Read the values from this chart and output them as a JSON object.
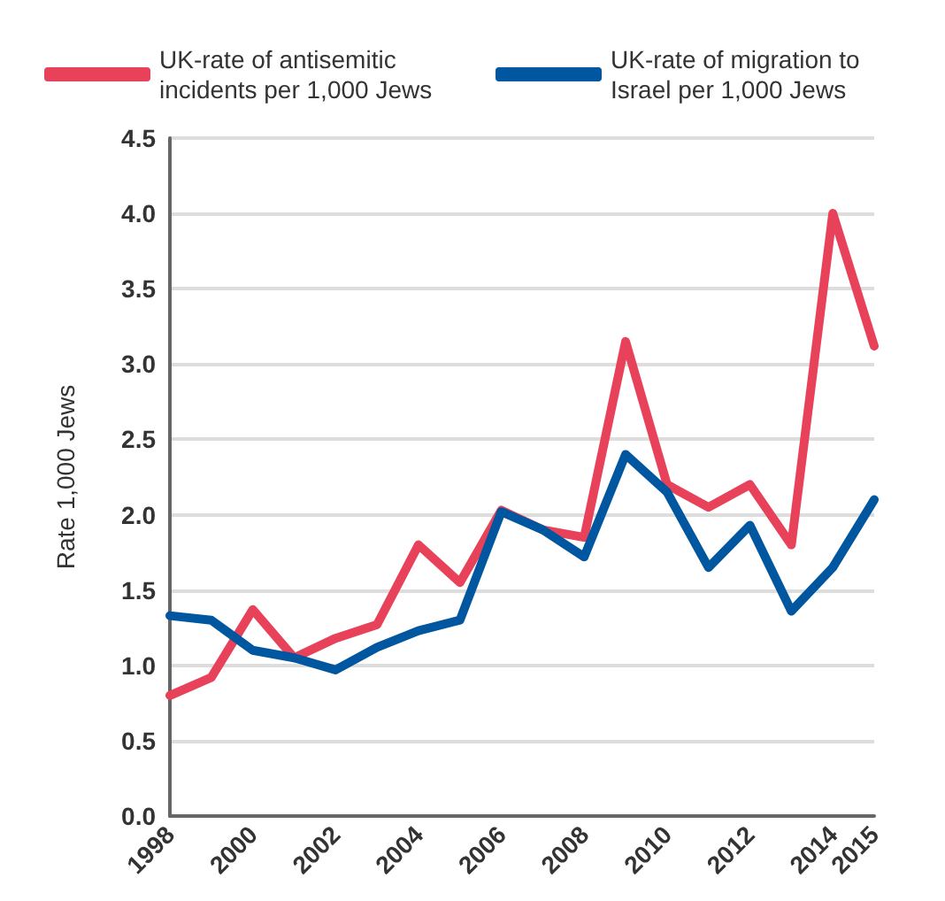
{
  "chart_data": {
    "type": "line",
    "ylabel": "Rate 1,000 Jews",
    "categories": [
      "1998",
      null,
      "2000",
      null,
      "2002",
      null,
      "2004",
      null,
      "2006",
      null,
      "2008",
      null,
      "2010",
      null,
      "2012",
      null,
      "2014",
      "2015"
    ],
    "series": [
      {
        "name": "UK-rate of antisemitic incidents per 1,000 Jews",
        "color": "#e8415a",
        "values": [
          0.8,
          0.92,
          1.37,
          1.05,
          1.18,
          1.27,
          1.8,
          1.55,
          2.03,
          1.9,
          1.85,
          3.15,
          2.2,
          2.05,
          2.2,
          1.8,
          4.0,
          3.12
        ]
      },
      {
        "name": "UK-rate of migration to Israel per 1,000 Jews",
        "color": "#0057a0",
        "values": [
          1.33,
          1.3,
          1.1,
          1.05,
          0.97,
          1.12,
          1.23,
          1.3,
          2.02,
          1.9,
          1.72,
          2.4,
          2.15,
          1.65,
          1.93,
          1.36,
          1.65,
          2.1
        ]
      }
    ],
    "ylim": [
      0,
      4.5
    ],
    "yticks": [
      {
        "value": 0,
        "label": "0.0"
      },
      {
        "value": 0.5,
        "label": "0.5"
      },
      {
        "value": 1,
        "label": "1.0"
      },
      {
        "value": 1.5,
        "label": "1.5"
      },
      {
        "value": 2,
        "label": "2.0"
      },
      {
        "value": 2.5,
        "label": "2.5"
      },
      {
        "value": 3,
        "label": "3.0"
      },
      {
        "value": 3.5,
        "label": "3.5"
      },
      {
        "value": 4,
        "label": "4.0"
      },
      {
        "value": 4.5,
        "label": "4.5"
      }
    ],
    "grid": "y",
    "legend": "top",
    "marker": "none",
    "line_style": "solid"
  }
}
